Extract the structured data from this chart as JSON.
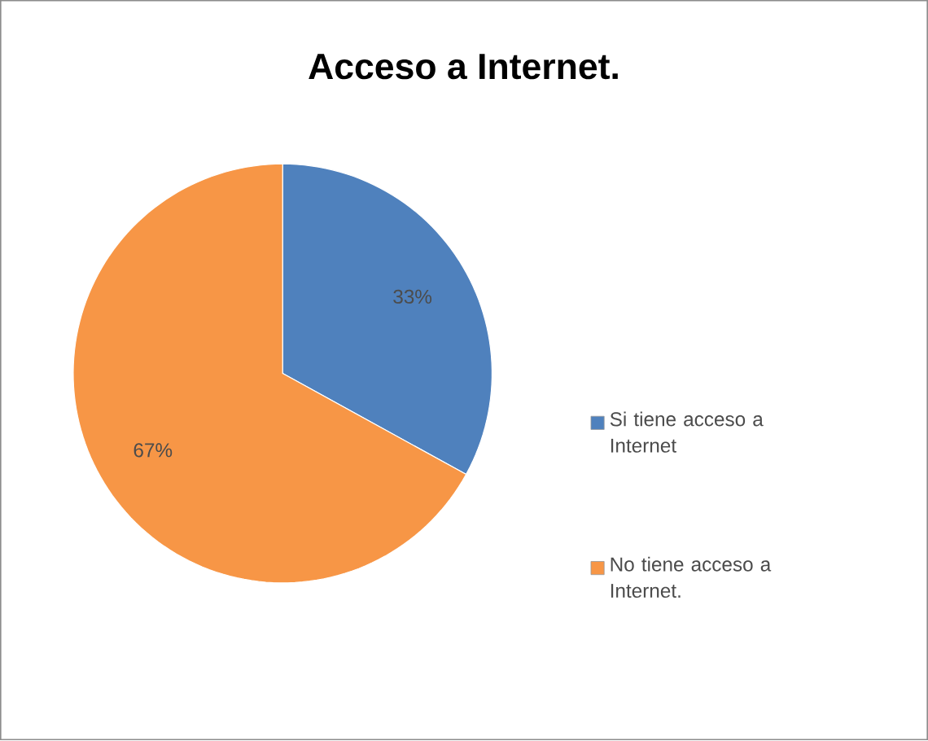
{
  "chart_data": {
    "type": "pie",
    "title": "Acceso a Internet.",
    "categories": [
      "Si tiene acceso a Internet",
      "No tiene acceso a Internet."
    ],
    "values": [
      33,
      67
    ],
    "colors": [
      "#4f81bd",
      "#f79646"
    ],
    "value_labels": [
      "33%",
      "67%"
    ],
    "legend": "right"
  }
}
